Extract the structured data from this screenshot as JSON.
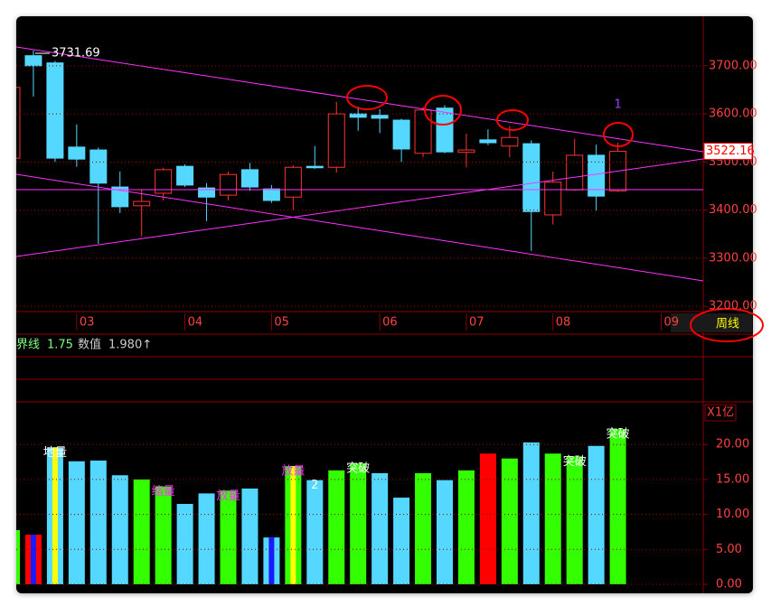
{
  "price_panel": {
    "type": "candlestick",
    "open": [
      3508,
      3721,
      3706,
      3531,
      3525,
      3448,
      3409,
      3435,
      3491,
      3446,
      3431,
      3484,
      3444,
      3427,
      3491,
      3489,
      3600,
      3597,
      3587,
      3518,
      3612,
      3520,
      3546,
      3533,
      3538,
      3390,
      3442,
      3514,
      3440
    ],
    "high": [
      3660,
      3731.69,
      3710,
      3578,
      3530,
      3480,
      3442,
      3488,
      3495,
      3456,
      3480,
      3498,
      3452,
      3493,
      3533,
      3625,
      3615,
      3610,
      3590,
      3615,
      3618,
      3559,
      3568,
      3575,
      3545,
      3480,
      3548,
      3536,
      3540
    ],
    "low": [
      3500,
      3636,
      3500,
      3490,
      3330,
      3394,
      3345,
      3420,
      3448,
      3377,
      3420,
      3440,
      3415,
      3400,
      3486,
      3478,
      3565,
      3560,
      3500,
      3510,
      3518,
      3489,
      3535,
      3510,
      3315,
      3370,
      3440,
      3399,
      3438
    ],
    "close": [
      3655,
      3700,
      3508,
      3506,
      3456,
      3407,
      3418,
      3484,
      3452,
      3427,
      3474,
      3448,
      3420,
      3489,
      3488,
      3600,
      3593,
      3591,
      3527,
      3608,
      3521,
      3525,
      3540,
      3551,
      3397,
      3458,
      3514,
      3429,
      3522.16
    ],
    "up_color": "#ff3232",
    "down_color": "#54d8ff",
    "max_label": "3731.69",
    "current": {
      "value": 3522.16,
      "label": "3522.16"
    },
    "ylim": [
      3189,
      3803
    ],
    "yticks": [
      {
        "value": 3200,
        "label": "3200.00"
      },
      {
        "value": 3300,
        "label": "3300.00"
      },
      {
        "value": 3400,
        "label": "3400.00"
      },
      {
        "value": 3500,
        "label": "3500.00"
      },
      {
        "value": 3600,
        "label": "3600.00"
      },
      {
        "value": 3700,
        "label": "3700.00"
      }
    ],
    "x_ticks": [
      {
        "index": 3,
        "label": "03"
      },
      {
        "index": 8,
        "label": "04"
      },
      {
        "index": 12,
        "label": "05"
      },
      {
        "index": 17,
        "label": "06"
      },
      {
        "index": 21,
        "label": "07"
      },
      {
        "index": 25,
        "label": "08"
      },
      {
        "index": 30,
        "label": "09"
      }
    ],
    "marker": "1"
  },
  "indicator": {
    "name1": "界线",
    "value1": 1.75,
    "name2": "数值",
    "value2": {
      "value": 1.98,
      "label": "1.980↑"
    }
  },
  "volume_panel": {
    "type": "bar",
    "unit_label": "X1亿",
    "values": [
      7.75,
      7.1,
      19.6,
      17.6,
      17.7,
      15.6,
      15.0,
      14.0,
      11.5,
      13.0,
      13.4,
      13.7,
      6.7,
      16.9,
      14.9,
      16.3,
      17.3,
      15.9,
      12.4,
      15.9,
      14.9,
      16.3,
      18.7,
      18.0,
      20.3,
      18.7,
      18.3,
      19.8,
      22.2
    ],
    "colors": [
      "#33ff00",
      "#ff0000",
      "#54d8ff",
      "#54d8ff",
      "#54d8ff",
      "#54d8ff",
      "#33ff00",
      "#33ff00",
      "#54d8ff",
      "#54d8ff",
      "#33ff00",
      "#54d8ff",
      "#54d8ff",
      "#33ff00",
      "#54d8ff",
      "#33ff00",
      "#33ff00",
      "#54d8ff",
      "#54d8ff",
      "#33ff00",
      "#54d8ff",
      "#33ff00",
      "#ff0000",
      "#33ff00",
      "#54d8ff",
      "#33ff00",
      "#33ff00",
      "#54d8ff",
      "#33ff00"
    ],
    "stripe_colors": [
      null,
      "#1a1aff",
      "#ffff00",
      null,
      null,
      null,
      null,
      null,
      null,
      null,
      null,
      null,
      "#1a1aff",
      "#ffff00",
      null,
      null,
      null,
      null,
      null,
      null,
      null,
      null,
      null,
      null,
      null,
      null,
      null,
      null,
      null
    ],
    "ylim": [
      0,
      26.1
    ],
    "yticks": [
      {
        "value": 0,
        "label": "0.00"
      },
      {
        "value": 5,
        "label": "5.00"
      },
      {
        "value": 10,
        "label": "10.00"
      },
      {
        "value": 15,
        "label": "15.00"
      },
      {
        "value": 20,
        "label": "20.00"
      }
    ],
    "annotations": [
      {
        "text": "地量",
        "index": 2,
        "color": "#ffffff"
      },
      {
        "text": "缩量",
        "index": 7,
        "color": "#ff33ff"
      },
      {
        "text": "放量",
        "index": 10,
        "color": "#ff33ff"
      },
      {
        "text": "放量",
        "index": 13,
        "color": "#ff33ff"
      },
      {
        "text": "2",
        "index": 14,
        "color": "#ffffff"
      },
      {
        "text": "突破",
        "index": 16,
        "color": "#ffffff"
      },
      {
        "text": "突破",
        "index": 26,
        "color": "#ffffff"
      },
      {
        "text": "突破",
        "index": 28,
        "color": "#ffffff"
      }
    ]
  },
  "period_button": "周线"
}
